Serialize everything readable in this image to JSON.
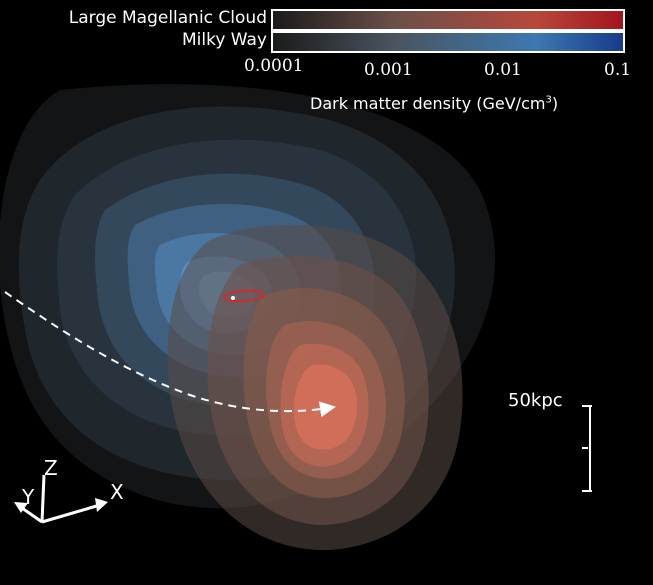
{
  "legend": {
    "series": [
      {
        "name": "Large Magellanic Cloud",
        "color_high": "#c0282b"
      },
      {
        "name": "Milky Way",
        "color_high": "#1f4f9e"
      }
    ],
    "ticks": [
      "0.0001",
      "0.001",
      "0.01",
      "0.1"
    ],
    "title_prefix": "Dark matter density (GeV/cm",
    "title_exp": "3",
    "title_suffix": ")"
  },
  "scale_bar": {
    "label": "50kpc"
  },
  "axes": {
    "x": "X",
    "y": "Y",
    "z": "Z"
  },
  "colors": {
    "milky_way": "#5b8fc0",
    "lmc": "#d8705a",
    "orbit": "#ffffff",
    "background": "#000000"
  }
}
